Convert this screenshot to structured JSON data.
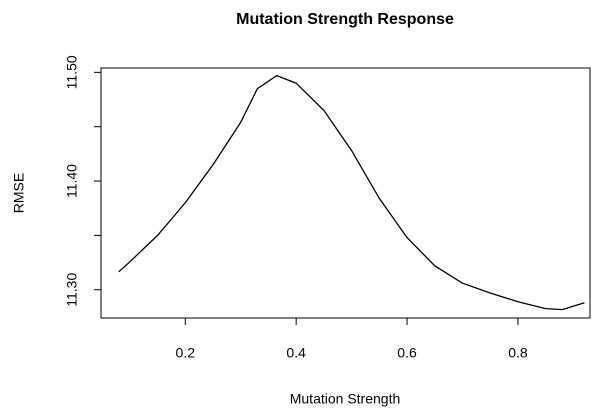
{
  "chart_data": {
    "type": "line",
    "title": "Mutation Strength Response",
    "x_label": "Mutation Strength",
    "y_label": "RMSE",
    "x": [
      0.08,
      0.1,
      0.15,
      0.2,
      0.25,
      0.3,
      0.33,
      0.365,
      0.4,
      0.45,
      0.5,
      0.55,
      0.6,
      0.65,
      0.7,
      0.75,
      0.8,
      0.85,
      0.88,
      0.92
    ],
    "series": [
      {
        "name": "RMSE",
        "color": "#000000",
        "values": [
          11.3165,
          11.3257,
          11.35,
          11.38,
          11.415,
          11.454,
          11.485,
          11.497,
          11.49,
          11.465,
          11.428,
          11.384,
          11.348,
          11.322,
          11.306,
          11.297,
          11.289,
          11.2826,
          11.2817,
          11.288
        ]
      }
    ],
    "xlim": [
      0.048,
      0.93
    ],
    "xticks": [
      0.2,
      0.4,
      0.6,
      0.8
    ],
    "ylim": [
      11.274,
      11.504
    ],
    "yticks": [
      {
        "value": 11.3,
        "label": "11.30"
      },
      {
        "value": 11.4,
        "label": "11.40"
      },
      {
        "value": 11.5,
        "label": "11.50"
      }
    ],
    "yminorticks": [
      11.35,
      11.45
    ],
    "grid": false
  }
}
